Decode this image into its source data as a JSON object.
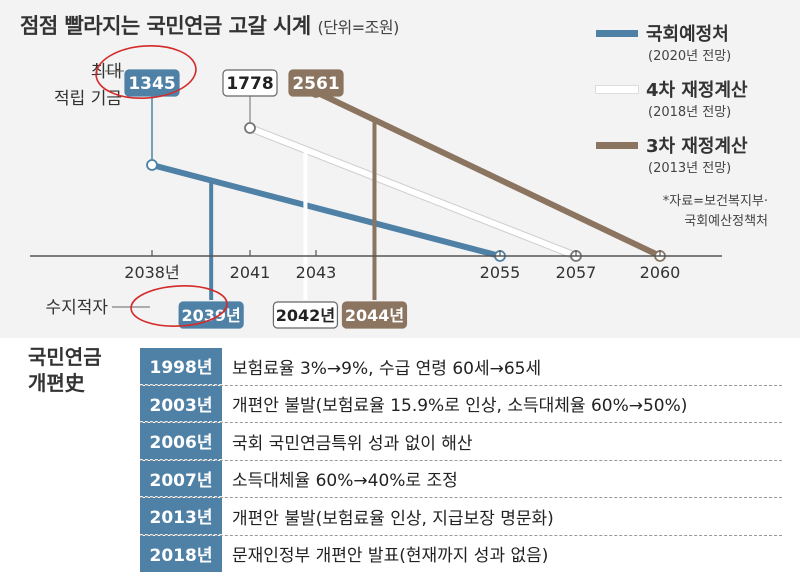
{
  "title": {
    "main": "점점 빨라지는 국민연금 고갈 시계",
    "unit": "(단위=조원)"
  },
  "legend": [
    {
      "name": "국회예정처",
      "sub": "(2020년 전망)",
      "color": "#4f81a6"
    },
    {
      "name": "4차 재정계산",
      "sub": "(2018년 전망)",
      "color": "#ffffff"
    },
    {
      "name": "3차 재정계산",
      "sub": "(2013년 전망)",
      "color": "#8b7460"
    }
  ],
  "source": [
    "*자료=보건복지부·",
    "국회예산정책처"
  ],
  "chart_data": {
    "type": "line",
    "row_labels": {
      "max_fund": "최대\n적립 기금",
      "deficit": "수지적자"
    },
    "x_ticks": [
      "2038년",
      "2041",
      "2043",
      "2055",
      "2057",
      "2060"
    ],
    "series": [
      {
        "name": "국회예정처",
        "peak_year": 2038,
        "peak_value": 1345,
        "deficit_label": "2039년",
        "depletion_year": 2055,
        "color": "#4f81a6"
      },
      {
        "name": "4차 재정계산",
        "peak_year": 2041,
        "peak_value": 1778,
        "deficit_label": "2042년",
        "depletion_year": 2057,
        "color": "#ffffff"
      },
      {
        "name": "3차 재정계산",
        "peak_year": 2043,
        "peak_value": 2561,
        "deficit_label": "2044년",
        "depletion_year": 2060,
        "color": "#8b7460"
      }
    ]
  },
  "history": {
    "heading": "국민연금\n개편史",
    "rows": [
      {
        "year": "1998년",
        "text": "보험료율 3%→9%, 수급 연령 60세→65세"
      },
      {
        "year": "2003년",
        "text": "개편안 불발(보험료율 15.9%로 인상, 소득대체율 60%→50%)"
      },
      {
        "year": "2006년",
        "text": "국회 국민연금특위 성과 없이 해산"
      },
      {
        "year": "2007년",
        "text": "소득대체율 60%→40%로 조정"
      },
      {
        "year": "2013년",
        "text": "개편안 불발(보험료율 인상, 지급보장 명문화)"
      },
      {
        "year": "2018년",
        "text": "문재인정부 개편안 발표(현재까지 성과 없음)"
      }
    ]
  }
}
